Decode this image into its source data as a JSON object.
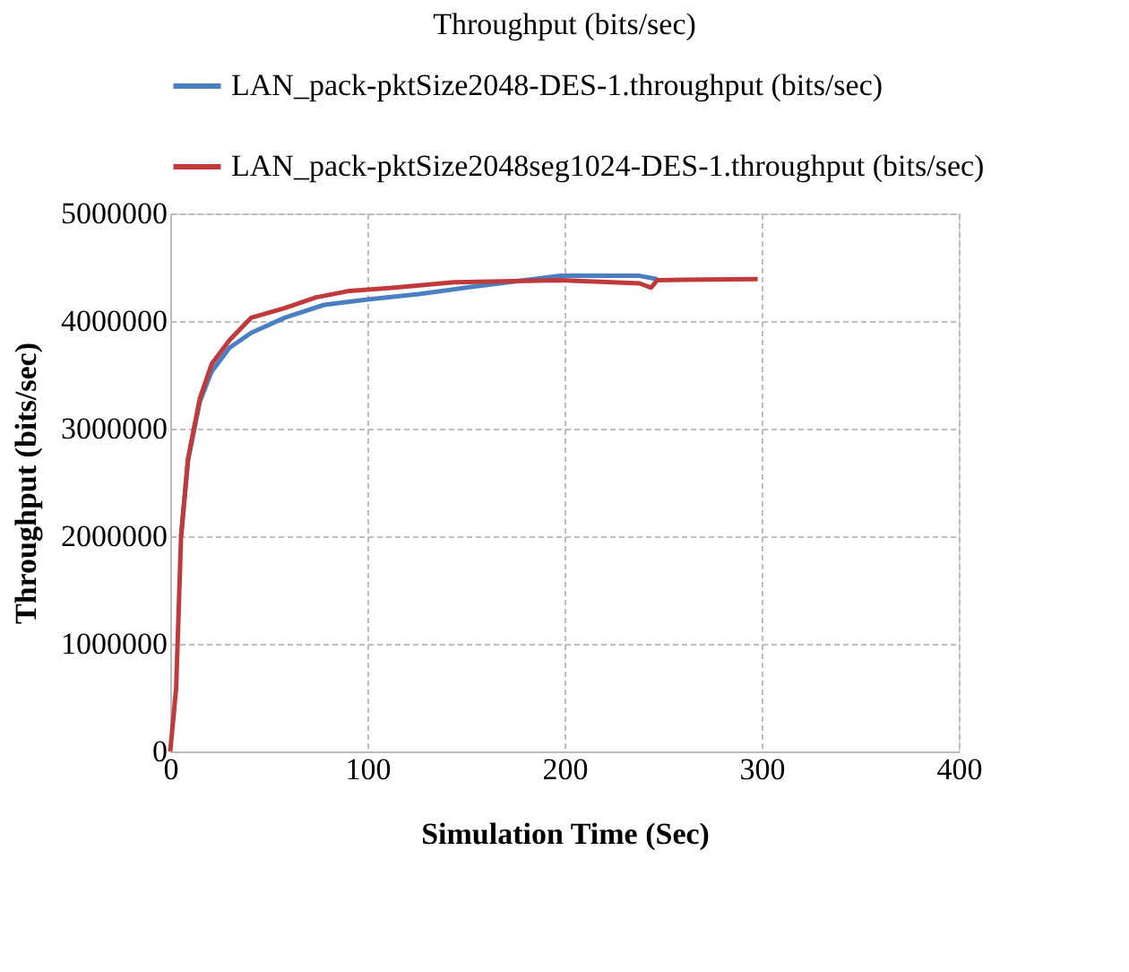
{
  "chart_data": {
    "type": "line",
    "title": "Throughput (bits/sec)",
    "xlabel": "Simulation Time (Sec)",
    "ylabel": "Throughput (bits/sec)",
    "xlim": [
      0,
      400
    ],
    "xticks": [
      0,
      100,
      200,
      300,
      400
    ],
    "ylim": [
      0,
      5000000
    ],
    "yticks": [
      0,
      1000000,
      2000000,
      3000000,
      4000000,
      5000000
    ],
    "grid": true,
    "legend": "top",
    "marker": "none",
    "line_style": "solid",
    "series": [
      {
        "name": "LAN_pack-pktSize2048-DES-1.throughput (bits/sec)",
        "color": "#4a7fc1",
        "x": [
          5.5,
          9,
          15,
          21,
          30,
          41,
          58,
          78,
          100,
          126,
          150,
          198,
          238,
          247
        ],
        "values": [
          2000000,
          2700000,
          3250000,
          3530000,
          3750000,
          3890000,
          4030000,
          4150000,
          4200000,
          4250000,
          4310000,
          4420000,
          4420000,
          4390000
        ]
      },
      {
        "name": "LAN_pack-pktSize2048seg1024-DES-1.throughput (bits/sec)",
        "color": "#c0393b",
        "x": [
          0,
          3,
          5.5,
          9,
          15,
          21,
          30,
          41,
          58,
          74,
          91,
          114,
          144,
          198,
          238,
          244,
          247,
          298
        ],
        "values": [
          0,
          590000,
          2000000,
          2720000,
          3280000,
          3600000,
          3820000,
          4030000,
          4120000,
          4220000,
          4280000,
          4310000,
          4360000,
          4380000,
          4350000,
          4310000,
          4380000,
          4390000
        ]
      }
    ]
  }
}
